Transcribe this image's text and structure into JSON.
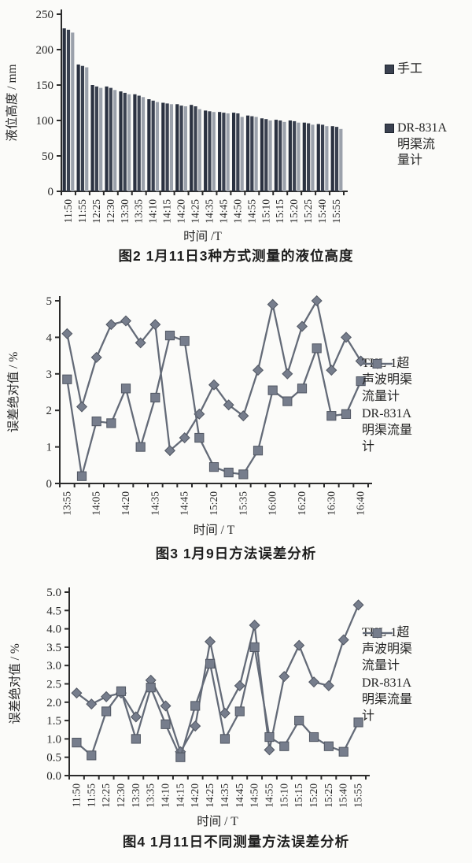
{
  "page": {
    "background": "#fbfbf9"
  },
  "colors": {
    "axis": "#2b2b2b",
    "text": "#232323",
    "line": "#646b78",
    "marker_fill": "#767d8c",
    "marker_stroke": "#505662",
    "bar_dark": "#2a3140",
    "bar_mid": "#3a4150",
    "bar_light": "#9ba1ab"
  },
  "chart_data": [
    {
      "type": "bar",
      "caption": "图2  1月11日3种方式测量的液位高度",
      "xlabel": "时间 /T",
      "ylabel": "液位高度 / mm",
      "ylim": [
        0,
        250
      ],
      "yticks": [
        0,
        50,
        100,
        150,
        200,
        250
      ],
      "ytick_labels": [
        "0",
        "50",
        "100",
        "150",
        "200",
        "250"
      ],
      "grid": false,
      "legend_position": "right",
      "categories": [
        "11:50",
        "11:55",
        "12:25",
        "12:30",
        "13:30",
        "13:35",
        "14:10",
        "14:15",
        "14:20",
        "14:25",
        "14:35",
        "14:45",
        "14:50",
        "14:55",
        "15:10",
        "15:15",
        "15:20",
        "15:25",
        "15:40",
        "15:55"
      ],
      "series": [
        {
          "name": "手工",
          "values": [
            230,
            179,
            150,
            148,
            141,
            137,
            130,
            125,
            123,
            122,
            114,
            112,
            111,
            107,
            103,
            101,
            100,
            97,
            95,
            92
          ]
        },
        {
          "name": "",
          "values": [
            228,
            177,
            148,
            146,
            139,
            135,
            128,
            124,
            121,
            120,
            113,
            111,
            110,
            106,
            102,
            100,
            99,
            96,
            94,
            91
          ]
        },
        {
          "name": "DR-831A明渠流量计",
          "values": [
            224,
            175,
            146,
            143,
            137,
            133,
            126,
            123,
            120,
            116,
            112,
            110,
            105,
            105,
            100,
            98,
            97,
            94,
            92,
            88
          ]
        }
      ],
      "legend": [
        {
          "label": "手工",
          "marker": "square"
        },
        {
          "label": "DR-831A\n明渠流\n量计",
          "marker": "square"
        }
      ]
    },
    {
      "type": "line",
      "caption": "图3  1月9日方法误差分析",
      "xlabel": "时间 / T",
      "ylabel": "误差绝对值 / %",
      "ylim": [
        0,
        5
      ],
      "yticks": [
        0,
        1,
        2,
        3,
        4,
        5
      ],
      "ytick_labels": [
        "0",
        "1",
        "2",
        "3",
        "4",
        "5"
      ],
      "grid": false,
      "legend_position": "right",
      "x_count": 21,
      "xtick_label_every": 2,
      "xtick_labels": [
        "13:55",
        "14:05",
        "14:20",
        "14:35",
        "14:45",
        "15:20",
        "15:35",
        "16:00",
        "16:20",
        "16:30",
        "16:40"
      ],
      "series": [
        {
          "name": "TKL-1超声波明渠流量计",
          "marker": "diamond",
          "values": [
            4.1,
            2.1,
            3.45,
            4.35,
            4.45,
            3.85,
            4.35,
            0.9,
            1.25,
            1.9,
            2.7,
            2.15,
            1.85,
            3.1,
            4.9,
            3.0,
            4.3,
            5.0,
            3.1,
            4.0,
            3.35
          ]
        },
        {
          "name": "DR-831A明渠流量计",
          "marker": "square",
          "values": [
            2.85,
            0.2,
            1.7,
            1.65,
            2.6,
            1.0,
            2.35,
            4.05,
            3.9,
            1.25,
            0.45,
            0.3,
            0.25,
            0.9,
            2.55,
            2.25,
            2.6,
            3.7,
            1.85,
            1.9,
            2.8
          ]
        }
      ],
      "legend": [
        {
          "label": "TKL-1超\n声波明渠\n流量计",
          "marker": "diamond"
        },
        {
          "label": "DR-831A\n明渠流量\n计",
          "marker": "square"
        }
      ]
    },
    {
      "type": "line",
      "caption": "图4  1月11日不同测量方法误差分析",
      "xlabel": "时间 / T",
      "ylabel": "误差绝对值 / %",
      "ylim": [
        0,
        5
      ],
      "yticks": [
        0,
        0.5,
        1,
        1.5,
        2,
        2.5,
        3,
        3.5,
        4,
        4.5,
        5
      ],
      "ytick_labels": [
        "0.0",
        "0.5",
        "1.0",
        "1.5",
        "2.0",
        "2.5",
        "3.0",
        "3.5",
        "4.0",
        "4.5",
        "5.0"
      ],
      "grid": false,
      "legend_position": "right",
      "x_count": 20,
      "xtick_label_every": 1,
      "xtick_labels": [
        "11:50",
        "11:55",
        "12:25",
        "12:30",
        "13:30",
        "13:35",
        "14:10",
        "14:15",
        "14:20",
        "14:25",
        "14:35",
        "14:45",
        "14:50",
        "14:55",
        "15:10",
        "15:15",
        "15:20",
        "15:25",
        "15:40",
        "15:55"
      ],
      "series": [
        {
          "name": "TKL-1超声波明渠流量计",
          "marker": "diamond",
          "values": [
            2.25,
            1.95,
            2.15,
            2.25,
            1.6,
            2.6,
            1.9,
            0.65,
            1.35,
            3.65,
            1.7,
            2.45,
            4.1,
            0.7,
            2.7,
            3.55,
            2.55,
            2.45,
            3.7,
            4.65
          ]
        },
        {
          "name": "DR-831A明渠流量计",
          "marker": "square",
          "values": [
            0.9,
            0.55,
            1.75,
            2.3,
            1.0,
            2.4,
            1.4,
            0.5,
            1.9,
            3.05,
            1.0,
            1.75,
            3.5,
            1.05,
            0.8,
            1.5,
            1.05,
            0.8,
            0.65,
            1.45
          ]
        }
      ],
      "legend": [
        {
          "label": "TKL-1超\n声波明渠\n流量计",
          "marker": "diamond"
        },
        {
          "label": "DR-831A\n明渠流量\n计",
          "marker": "square"
        }
      ]
    }
  ]
}
